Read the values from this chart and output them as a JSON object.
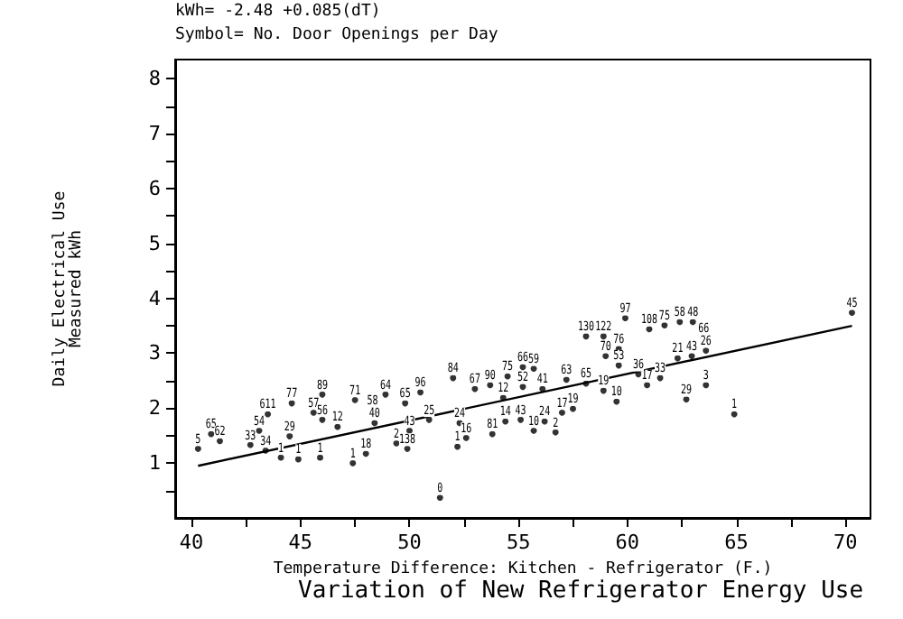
{
  "chart_data": {
    "type": "scatter",
    "title": "Variation of New Refrigerator Energy Use",
    "xlabel": "Temperature Difference: Kitchen - Refrigerator (F.)",
    "ylabel": "Daily Electrical Use\nMeasured kWh",
    "annotations": [
      "kWh= -2.48 +0.085(dT)",
      "Symbol= No. Door Openings per Day",
      {
        "text": "5",
        "x": 40.3,
        "y": 1.26
      },
      {
        "text": "65",
        "x": 40.9,
        "y": 1.53
      },
      {
        "text": "62",
        "x": 41.3,
        "y": 1.4
      },
      {
        "text": "33",
        "x": 42.7,
        "y": 1.33
      },
      {
        "text": "34",
        "x": 43.4,
        "y": 1.23
      },
      {
        "text": "77",
        "x": 44.6,
        "y": 2.09
      },
      {
        "text": "611",
        "x": 43.5,
        "y": 1.89
      },
      {
        "text": "54",
        "x": 43.1,
        "y": 1.59
      },
      {
        "text": "1",
        "x": 44.1,
        "y": 1.1
      },
      {
        "text": "1",
        "x": 44.9,
        "y": 1.07
      },
      {
        "text": "1",
        "x": 45.9,
        "y": 1.1
      },
      {
        "text": "1",
        "x": 47.4,
        "y": 1.0
      },
      {
        "text": "18",
        "x": 48.0,
        "y": 1.17
      },
      {
        "text": "89",
        "x": 46.0,
        "y": 2.25
      },
      {
        "text": "71",
        "x": 47.5,
        "y": 2.15
      },
      {
        "text": "64",
        "x": 48.9,
        "y": 2.25
      },
      {
        "text": "57",
        "x": 45.6,
        "y": 1.92
      },
      {
        "text": "2",
        "x": 49.4,
        "y": 1.36
      },
      {
        "text": "138",
        "x": 49.9,
        "y": 1.26
      },
      {
        "text": "130",
        "x": 58.1,
        "y": 3.31
      },
      {
        "text": "122",
        "x": 58.9,
        "y": 3.31
      },
      {
        "text": "97",
        "x": 59.9,
        "y": 3.64
      },
      {
        "text": "70",
        "x": 59.0,
        "y": 2.95
      },
      {
        "text": "84",
        "x": 52.0,
        "y": 2.55
      },
      {
        "text": "75",
        "x": 54.5,
        "y": 2.58
      },
      {
        "text": "66",
        "x": 55.2,
        "y": 2.75
      },
      {
        "text": "59",
        "x": 55.7,
        "y": 2.72
      },
      {
        "text": "63",
        "x": 57.2,
        "y": 2.52
      },
      {
        "text": "14",
        "x": 54.4,
        "y": 1.76
      },
      {
        "text": "2",
        "x": 56.7,
        "y": 1.56
      },
      {
        "text": "19",
        "x": 57.5,
        "y": 1.99
      },
      {
        "text": "17",
        "x": 57.0,
        "y": 1.92
      },
      {
        "text": "24",
        "x": 56.2,
        "y": 1.76
      },
      {
        "text": "1",
        "x": 52.2,
        "y": 1.3
      },
      {
        "text": "16",
        "x": 52.6,
        "y": 1.46
      },
      {
        "text": "81",
        "x": 53.8,
        "y": 1.53
      },
      {
        "text": "43",
        "x": 55.1,
        "y": 1.79
      },
      {
        "text": "10",
        "x": 55.7,
        "y": 1.59
      },
      {
        "text": "45",
        "x": 70.3,
        "y": 3.74
      },
      {
        "text": "3",
        "x": 63.6,
        "y": 2.42
      },
      {
        "text": "29",
        "x": 62.7,
        "y": 2.16
      },
      {
        "text": "1",
        "x": 64.9,
        "y": 1.89
      },
      {
        "text": "108",
        "x": 61.0,
        "y": 3.44
      },
      {
        "text": "75",
        "x": 61.7,
        "y": 3.51
      },
      {
        "text": "58",
        "x": 62.4,
        "y": 3.57
      },
      {
        "text": "48",
        "x": 63.0,
        "y": 3.57
      },
      {
        "text": "66",
        "x": 63.5,
        "y": 3.28
      },
      {
        "text": "26",
        "x": 63.6,
        "y": 3.05
      },
      {
        "text": "76",
        "x": 59.6,
        "y": 3.08
      },
      {
        "text": "53",
        "x": 59.6,
        "y": 2.78
      },
      {
        "text": "19",
        "x": 58.9,
        "y": 2.32
      },
      {
        "text": "10",
        "x": 59.5,
        "y": 2.12
      },
      {
        "text": "17",
        "x": 60.9,
        "y": 2.42
      },
      {
        "text": "33",
        "x": 61.5,
        "y": 2.55
      },
      {
        "text": "36",
        "x": 60.5,
        "y": 2.62
      },
      {
        "text": "21",
        "x": 62.3,
        "y": 2.91
      },
      {
        "text": "43",
        "x": 62.95,
        "y": 2.95
      },
      {
        "text": "65",
        "x": 58.1,
        "y": 2.45
      },
      {
        "text": "0",
        "x": 51.4,
        "y": 0.37
      },
      {
        "text": "67",
        "x": 53.0,
        "y": 2.35
      },
      {
        "text": "96",
        "x": 50.5,
        "y": 2.29
      },
      {
        "text": "43",
        "x": 50.0,
        "y": 1.59
      },
      {
        "text": "56",
        "x": 46.0,
        "y": 1.79
      },
      {
        "text": "29",
        "x": 44.5,
        "y": 1.49
      },
      {
        "text": "65",
        "x": 49.8,
        "y": 2.09
      },
      {
        "text": "58",
        "x": 48.3,
        "y": 1.96
      },
      {
        "text": "12",
        "x": 46.7,
        "y": 1.66
      },
      {
        "text": "40",
        "x": 48.4,
        "y": 1.73
      },
      {
        "text": "25",
        "x": 50.9,
        "y": 1.79
      },
      {
        "text": "24",
        "x": 52.3,
        "y": 1.73
      },
      {
        "text": "12",
        "x": 54.3,
        "y": 2.19
      },
      {
        "text": "52",
        "x": 55.2,
        "y": 2.39
      },
      {
        "text": "41",
        "x": 56.1,
        "y": 2.35
      },
      {
        "text": "90",
        "x": 53.7,
        "y": 2.42
      }
    ],
    "xlim": [
      39.25,
      71.15
    ],
    "ylim": [
      0,
      8.35
    ],
    "xticks": [
      40,
      {
        "value": 42.5,
        "label": null
      },
      45,
      {
        "value": 47.5,
        "label": null
      },
      50,
      {
        "value": 52.5,
        "label": null
      },
      55,
      {
        "value": 57.5,
        "label": null
      },
      60,
      {
        "value": 62.5,
        "label": null
      },
      65,
      {
        "value": 67.5,
        "label": null
      },
      70
    ],
    "yticks": [
      {
        "value": 0.5,
        "label": null
      },
      1,
      {
        "value": 1.5,
        "label": null
      },
      2,
      {
        "value": 2.5,
        "label": null
      },
      3,
      {
        "value": 3.5,
        "label": null
      },
      4,
      {
        "value": 4.5,
        "label": null
      },
      5,
      {
        "value": 5.5,
        "label": null
      },
      6,
      {
        "value": 6.5,
        "label": null
      },
      7,
      {
        "value": 7.5,
        "label": null
      },
      8
    ],
    "grid": false,
    "series": [
      {
        "type": "scatter",
        "color": "#000000",
        "marker": "circle",
        "x": [
          40.3,
          40.9,
          41.3,
          42.7,
          43.4,
          44.6,
          43.5,
          43.1,
          44.1,
          44.9,
          45.9,
          47.4,
          48.0,
          46.0,
          47.5,
          48.9,
          45.6,
          49.4,
          49.9,
          58.1,
          58.9,
          59.9,
          59.0,
          52.0,
          54.5,
          55.2,
          55.7,
          57.2,
          54.4,
          56.7,
          57.5,
          57.0,
          56.2,
          52.2,
          52.6,
          53.8,
          55.1,
          55.7,
          70.3,
          63.6,
          62.7,
          64.9,
          61.0,
          61.7,
          62.4,
          63.0,
          63.5,
          63.6,
          59.6,
          59.6,
          58.9,
          59.5,
          60.9,
          61.5,
          60.5,
          62.3,
          62.95,
          58.1,
          51.4,
          53.0,
          50.5,
          50.0,
          46.0,
          44.5,
          49.8,
          48.3,
          46.7,
          48.4,
          50.9,
          52.3,
          54.3,
          55.2,
          56.1,
          53.7
        ],
        "values": [
          1.26,
          1.53,
          1.4,
          1.33,
          1.23,
          2.09,
          1.89,
          1.59,
          1.1,
          1.07,
          1.1,
          1.0,
          1.17,
          2.25,
          2.15,
          2.25,
          1.92,
          1.36,
          1.26,
          3.31,
          3.31,
          3.64,
          2.95,
          2.55,
          2.58,
          2.75,
          2.72,
          2.52,
          1.76,
          1.56,
          1.99,
          1.92,
          1.76,
          1.3,
          1.46,
          1.53,
          1.79,
          1.59,
          3.74,
          2.42,
          2.16,
          1.89,
          3.44,
          3.51,
          3.57,
          3.57,
          3.28,
          3.05,
          3.08,
          2.78,
          2.32,
          2.12,
          2.42,
          2.55,
          2.62,
          2.91,
          2.95,
          2.45,
          0.37,
          2.35,
          2.29,
          1.59,
          1.79,
          1.49,
          2.09,
          1.96,
          1.66,
          1.73,
          1.79,
          1.73,
          2.19,
          2.39,
          2.35,
          2.42
        ]
      },
      {
        "type": "line",
        "color": "#000000",
        "x": [
          40.3,
          70.3
        ],
        "values": [
          0.95,
          3.5
        ]
      }
    ]
  }
}
